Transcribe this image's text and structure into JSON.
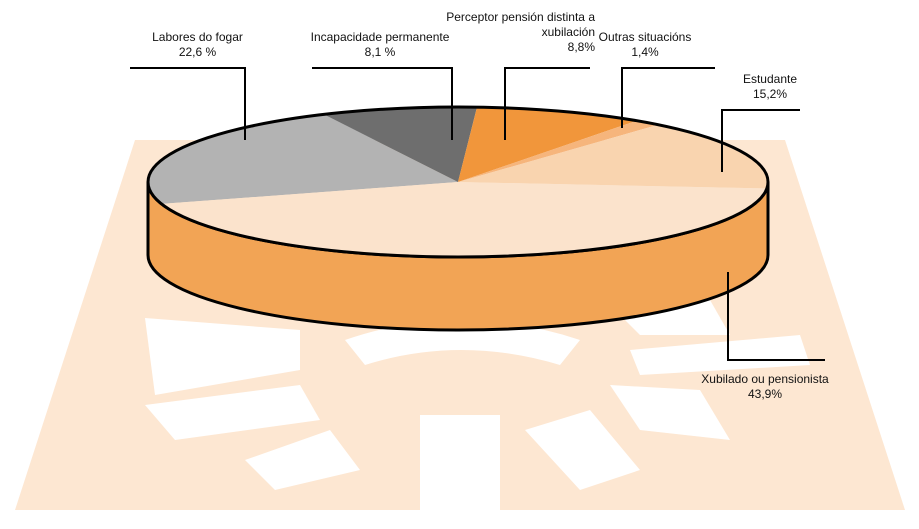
{
  "chart_data": {
    "type": "pie",
    "categories": [
      "Labores do fogar",
      "Incapacidade permanente",
      "Perceptor pensión distinta a xubilación",
      "Outras situacións",
      "Estudante",
      "Xubilado ou pensionista"
    ],
    "values": [
      22.6,
      8.1,
      8.8,
      1.4,
      15.2,
      43.9
    ],
    "value_labels": [
      "22,6 %",
      "8,1 %",
      "8,8%",
      "1,4%",
      "15,2%",
      "43,9%"
    ],
    "colors": [
      "#b3b3b3",
      "#6e6e6e",
      "#f1963b",
      "#f6b57c",
      "#f9d4af",
      "#fbe3cc"
    ]
  }
}
